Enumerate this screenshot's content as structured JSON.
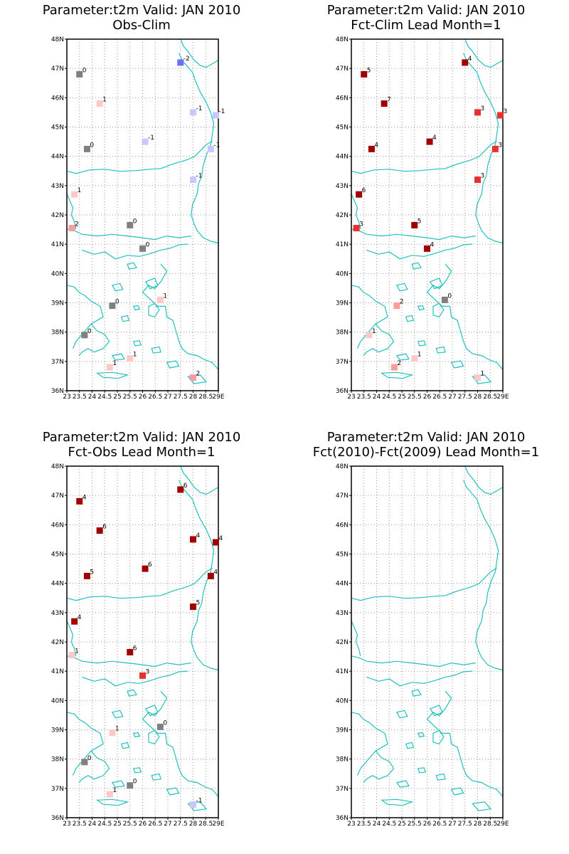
{
  "panels": [
    {
      "title_line1": "Parameter:t2m Valid: JAN 2010",
      "title_line2": "Obs-Clim",
      "stations": [
        {
          "lon": 27.5,
          "lat": 47.2,
          "value": "-2",
          "color": "#6f6fff"
        },
        {
          "lon": 23.5,
          "lat": 46.8,
          "value": "0",
          "color": "#808080"
        },
        {
          "lon": 24.3,
          "lat": 45.8,
          "value": "1",
          "color": "#ffc8c8"
        },
        {
          "lon": 28.0,
          "lat": 45.5,
          "value": "-1",
          "color": "#c8c8ff"
        },
        {
          "lon": 28.9,
          "lat": 45.4,
          "value": "-1",
          "color": "#c8c8ff"
        },
        {
          "lon": 26.1,
          "lat": 44.5,
          "value": "-1",
          "color": "#c8c8ff"
        },
        {
          "lon": 23.8,
          "lat": 44.25,
          "value": "0",
          "color": "#808080"
        },
        {
          "lon": 28.7,
          "lat": 44.25,
          "value": "-1",
          "color": "#c8c8ff"
        },
        {
          "lon": 28.0,
          "lat": 43.2,
          "value": "-1",
          "color": "#c8c8ff"
        },
        {
          "lon": 23.3,
          "lat": 42.7,
          "value": "1",
          "color": "#ffc8c8"
        },
        {
          "lon": 23.2,
          "lat": 41.55,
          "value": "2",
          "color": "#ff9b9b"
        },
        {
          "lon": 25.5,
          "lat": 41.65,
          "value": "0",
          "color": "#808080"
        },
        {
          "lon": 26.0,
          "lat": 40.85,
          "value": "0",
          "color": "#808080"
        },
        {
          "lon": 26.7,
          "lat": 39.1,
          "value": "1",
          "color": "#ffc8c8"
        },
        {
          "lon": 24.8,
          "lat": 38.9,
          "value": "0",
          "color": "#808080"
        },
        {
          "lon": 23.7,
          "lat": 37.9,
          "value": "0",
          "color": "#808080"
        },
        {
          "lon": 25.5,
          "lat": 37.1,
          "value": "1",
          "color": "#ffc8c8"
        },
        {
          "lon": 24.7,
          "lat": 36.8,
          "value": "1",
          "color": "#ffc8c8"
        },
        {
          "lon": 28.0,
          "lat": 36.45,
          "value": "2",
          "color": "#ff9b9b"
        }
      ]
    },
    {
      "title_line1": "Parameter:t2m Valid: JAN 2010",
      "title_line2": "Fct-Clim Lead Month=1",
      "stations": [
        {
          "lon": 27.5,
          "lat": 47.2,
          "value": "4",
          "color": "#a00000"
        },
        {
          "lon": 23.5,
          "lat": 46.8,
          "value": "5",
          "color": "#a00000"
        },
        {
          "lon": 24.3,
          "lat": 45.8,
          "value": "7",
          "color": "#a00000"
        },
        {
          "lon": 28.0,
          "lat": 45.5,
          "value": "3",
          "color": "#e83030"
        },
        {
          "lon": 28.9,
          "lat": 45.4,
          "value": "3",
          "color": "#e83030"
        },
        {
          "lon": 26.1,
          "lat": 44.5,
          "value": "4",
          "color": "#a00000"
        },
        {
          "lon": 23.8,
          "lat": 44.25,
          "value": "4",
          "color": "#a00000"
        },
        {
          "lon": 28.7,
          "lat": 44.25,
          "value": "3",
          "color": "#e83030"
        },
        {
          "lon": 28.0,
          "lat": 43.2,
          "value": "3",
          "color": "#e83030"
        },
        {
          "lon": 23.3,
          "lat": 42.7,
          "value": "6",
          "color": "#a00000"
        },
        {
          "lon": 23.2,
          "lat": 41.55,
          "value": "3",
          "color": "#e83030"
        },
        {
          "lon": 25.5,
          "lat": 41.65,
          "value": "5",
          "color": "#a00000"
        },
        {
          "lon": 26.0,
          "lat": 40.85,
          "value": "4",
          "color": "#a00000"
        },
        {
          "lon": 26.7,
          "lat": 39.1,
          "value": "0",
          "color": "#808080"
        },
        {
          "lon": 24.8,
          "lat": 38.9,
          "value": "2",
          "color": "#ff9b9b"
        },
        {
          "lon": 23.7,
          "lat": 37.9,
          "value": "1",
          "color": "#ffc8c8"
        },
        {
          "lon": 25.5,
          "lat": 37.1,
          "value": "1",
          "color": "#ffc8c8"
        },
        {
          "lon": 24.7,
          "lat": 36.8,
          "value": "2",
          "color": "#ff9b9b"
        },
        {
          "lon": 28.0,
          "lat": 36.45,
          "value": "1",
          "color": "#ffc8c8"
        }
      ]
    },
    {
      "title_line1": "Parameter:t2m Valid: JAN 2010",
      "title_line2": "Fct-Obs Lead Month=1",
      "stations": [
        {
          "lon": 27.5,
          "lat": 47.2,
          "value": "6",
          "color": "#a00000"
        },
        {
          "lon": 23.5,
          "lat": 46.8,
          "value": "4",
          "color": "#a00000"
        },
        {
          "lon": 24.3,
          "lat": 45.8,
          "value": "6",
          "color": "#a00000"
        },
        {
          "lon": 28.0,
          "lat": 45.5,
          "value": "4",
          "color": "#a00000"
        },
        {
          "lon": 28.9,
          "lat": 45.4,
          "value": "4",
          "color": "#a00000"
        },
        {
          "lon": 26.1,
          "lat": 44.5,
          "value": "6",
          "color": "#a00000"
        },
        {
          "lon": 23.8,
          "lat": 44.25,
          "value": "5",
          "color": "#a00000"
        },
        {
          "lon": 28.7,
          "lat": 44.25,
          "value": "4",
          "color": "#a00000"
        },
        {
          "lon": 28.0,
          "lat": 43.2,
          "value": "5",
          "color": "#a00000"
        },
        {
          "lon": 23.3,
          "lat": 42.7,
          "value": "4",
          "color": "#a00000"
        },
        {
          "lon": 23.2,
          "lat": 41.55,
          "value": "1",
          "color": "#ffc8c8"
        },
        {
          "lon": 25.5,
          "lat": 41.65,
          "value": "6",
          "color": "#a00000"
        },
        {
          "lon": 26.0,
          "lat": 40.85,
          "value": "3",
          "color": "#e83030"
        },
        {
          "lon": 26.7,
          "lat": 39.1,
          "value": "0",
          "color": "#808080"
        },
        {
          "lon": 24.8,
          "lat": 38.9,
          "value": "1",
          "color": "#ffc8c8"
        },
        {
          "lon": 23.7,
          "lat": 37.9,
          "value": "0",
          "color": "#808080"
        },
        {
          "lon": 25.5,
          "lat": 37.1,
          "value": "0",
          "color": "#808080"
        },
        {
          "lon": 24.7,
          "lat": 36.8,
          "value": "1",
          "color": "#ffc8c8"
        },
        {
          "lon": 28.0,
          "lat": 36.45,
          "value": "-1",
          "color": "#c8c8ff"
        }
      ]
    },
    {
      "title_line1": "Parameter:t2m Valid: JAN 2010",
      "title_line2": "Fct(2010)-Fct(2009) Lead Month=1",
      "stations": []
    }
  ],
  "map": {
    "lon_range": [
      23,
      29
    ],
    "lat_range": [
      36,
      48
    ],
    "lat_ticks": [
      "36N",
      "37N",
      "38N",
      "39N",
      "40N",
      "41N",
      "42N",
      "43N",
      "44N",
      "45N",
      "46N",
      "47N",
      "48N"
    ],
    "lon_ticks": [
      "23",
      "23.5",
      "24",
      "24.5",
      "25",
      "25.5",
      "26",
      "26.5",
      "27",
      "27.5",
      "28",
      "28.5",
      "29E"
    ],
    "coast_color": "#20c0c0",
    "grid_color": "#9a9a9a"
  }
}
